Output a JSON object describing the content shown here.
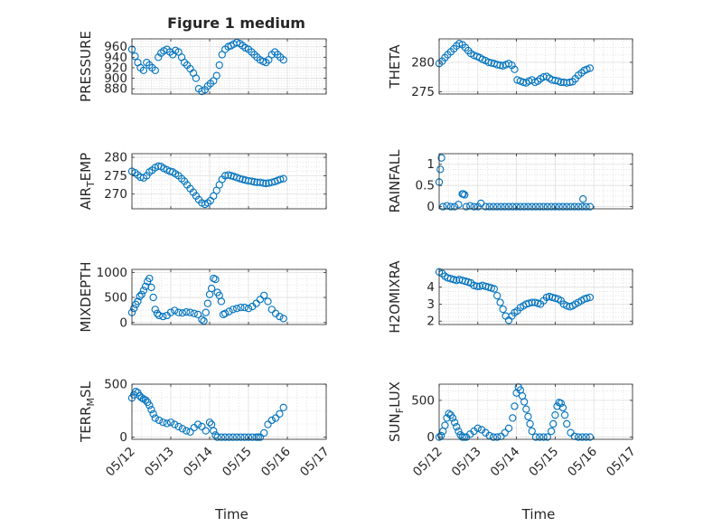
{
  "figure": {
    "title": "Figure 1 medium",
    "x_label": "Time",
    "marker_color": "#0072bd",
    "x_tick_labels": [
      "05/12",
      "05/13",
      "05/14",
      "05/15",
      "05/16",
      "05/17"
    ]
  },
  "chart_data": [
    {
      "type": "scatter",
      "id": "pressure",
      "title": "Figure 1 medium",
      "ylabel": "PRESSURE",
      "xlabel": "",
      "ylim": [
        870,
        975
      ],
      "yticks": [
        880,
        900,
        920,
        940,
        960
      ],
      "grid": true,
      "marker": "open-circle",
      "x": [
        0.0,
        0.08,
        0.15,
        0.22,
        0.3,
        0.38,
        0.45,
        0.52,
        0.6,
        0.68,
        0.75,
        0.82,
        0.9,
        0.98,
        1.05,
        1.12,
        1.2,
        1.28,
        1.35,
        1.42,
        1.5,
        1.58,
        1.65,
        1.72,
        1.8,
        1.88,
        1.95,
        2.02,
        2.1,
        2.18,
        2.25,
        2.32,
        2.4,
        2.48,
        2.55,
        2.62,
        2.7,
        2.78,
        2.85,
        2.92,
        3.0,
        3.08,
        3.15,
        3.22,
        3.3,
        3.38,
        3.45,
        3.52,
        3.6,
        3.68,
        3.75,
        3.82,
        3.9
      ],
      "y": [
        955,
        942,
        930,
        920,
        915,
        930,
        925,
        920,
        915,
        940,
        948,
        952,
        955,
        950,
        945,
        953,
        950,
        940,
        930,
        925,
        918,
        910,
        900,
        880,
        875,
        878,
        885,
        890,
        895,
        905,
        925,
        945,
        955,
        960,
        962,
        965,
        968,
        966,
        962,
        958,
        955,
        950,
        945,
        940,
        935,
        932,
        930,
        935,
        945,
        950,
        945,
        940,
        935
      ]
    },
    {
      "type": "scatter",
      "id": "theta",
      "ylabel": "THETA",
      "xlabel": "",
      "ylim": [
        274.6,
        284
      ],
      "yticks": [
        275,
        280
      ],
      "grid": true,
      "marker": "open-circle",
      "x": [
        0.0,
        0.08,
        0.15,
        0.22,
        0.3,
        0.38,
        0.45,
        0.52,
        0.6,
        0.68,
        0.75,
        0.82,
        0.9,
        0.98,
        1.05,
        1.12,
        1.2,
        1.28,
        1.35,
        1.42,
        1.5,
        1.58,
        1.65,
        1.72,
        1.8,
        1.88,
        1.95,
        2.02,
        2.1,
        2.18,
        2.25,
        2.32,
        2.4,
        2.48,
        2.55,
        2.62,
        2.7,
        2.78,
        2.85,
        2.92,
        3.0,
        3.08,
        3.15,
        3.22,
        3.3,
        3.38,
        3.45,
        3.52,
        3.6,
        3.68,
        3.75,
        3.82,
        3.9
      ],
      "y": [
        279.8,
        280.2,
        280.8,
        281.3,
        281.8,
        282.3,
        282.8,
        283.2,
        283.0,
        282.5,
        282.0,
        281.5,
        281.2,
        281.0,
        280.8,
        280.5,
        280.3,
        280.0,
        279.9,
        279.8,
        279.6,
        279.5,
        279.4,
        279.6,
        279.8,
        279.5,
        278.8,
        277.0,
        276.8,
        276.6,
        276.5,
        276.8,
        277.0,
        276.6,
        276.8,
        277.2,
        277.5,
        277.6,
        277.3,
        277.0,
        276.9,
        276.8,
        276.6,
        276.6,
        276.5,
        276.6,
        276.7,
        277.2,
        277.8,
        278.2,
        278.6,
        278.8,
        279.0
      ]
    },
    {
      "type": "scatter",
      "id": "air-temp",
      "ylabel_main": "AIR",
      "ylabel_sub": "T",
      "ylabel_rest": "EMP",
      "xlabel": "",
      "ylim": [
        266,
        281
      ],
      "yticks": [
        270,
        275,
        280
      ],
      "grid": true,
      "marker": "open-circle",
      "x": [
        0.0,
        0.08,
        0.15,
        0.22,
        0.3,
        0.38,
        0.45,
        0.52,
        0.6,
        0.68,
        0.75,
        0.82,
        0.9,
        0.98,
        1.05,
        1.12,
        1.2,
        1.28,
        1.35,
        1.42,
        1.5,
        1.58,
        1.65,
        1.72,
        1.8,
        1.88,
        1.95,
        2.02,
        2.1,
        2.18,
        2.25,
        2.32,
        2.4,
        2.48,
        2.55,
        2.62,
        2.7,
        2.78,
        2.85,
        2.92,
        3.0,
        3.08,
        3.15,
        3.22,
        3.3,
        3.38,
        3.45,
        3.52,
        3.6,
        3.68,
        3.75,
        3.82,
        3.9
      ],
      "y": [
        276.2,
        275.8,
        275.2,
        274.6,
        274.4,
        275.0,
        276.0,
        276.5,
        277.2,
        277.6,
        277.5,
        277.0,
        276.6,
        276.2,
        276.0,
        275.5,
        275.0,
        274.2,
        273.5,
        272.5,
        271.5,
        270.5,
        269.5,
        268.5,
        267.6,
        267.2,
        267.6,
        268.2,
        269.5,
        271.0,
        272.5,
        274.0,
        275.0,
        275.2,
        275.0,
        274.8,
        274.5,
        274.2,
        274.0,
        273.8,
        273.6,
        273.5,
        273.3,
        273.2,
        273.2,
        273.0,
        272.9,
        273.0,
        273.2,
        273.4,
        273.7,
        274.0,
        274.2
      ]
    },
    {
      "type": "scatter",
      "id": "rainfall",
      "ylabel": "RAINFALL",
      "xlabel": "",
      "ylim": [
        -0.05,
        1.25
      ],
      "yticks": [
        0,
        0.5,
        1
      ],
      "grid": true,
      "marker": "open-circle",
      "x": [
        0.0,
        0.03,
        0.06,
        0.1,
        0.2,
        0.3,
        0.4,
        0.5,
        0.6,
        0.62,
        0.66,
        0.7,
        0.8,
        0.9,
        1.0,
        1.08,
        1.2,
        1.3,
        1.4,
        1.5,
        1.6,
        1.7,
        1.8,
        1.9,
        2.0,
        2.1,
        2.2,
        2.3,
        2.4,
        2.5,
        2.6,
        2.7,
        2.8,
        2.9,
        3.0,
        3.1,
        3.2,
        3.3,
        3.4,
        3.5,
        3.6,
        3.7,
        3.72,
        3.8,
        3.9
      ],
      "y": [
        0.58,
        0.88,
        1.15,
        0.0,
        0.02,
        0.0,
        0.0,
        0.05,
        0.3,
        0.3,
        0.28,
        0.0,
        0.02,
        0.0,
        0.0,
        0.08,
        0.0,
        0.0,
        0.0,
        0.0,
        0.0,
        0.0,
        0.0,
        0.0,
        0.0,
        0.0,
        0.0,
        0.0,
        0.0,
        0.0,
        0.0,
        0.0,
        0.0,
        0.0,
        0.0,
        0.0,
        0.0,
        0.0,
        0.0,
        0.0,
        0.0,
        0.0,
        0.18,
        0.0,
        0.0
      ]
    },
    {
      "type": "scatter",
      "id": "mixdepth",
      "ylabel": "MIXDEPTH",
      "xlabel": "",
      "ylim": [
        -40,
        1060
      ],
      "yticks": [
        0,
        500,
        1000
      ],
      "grid": true,
      "marker": "open-circle",
      "x": [
        0.0,
        0.05,
        0.1,
        0.15,
        0.2,
        0.25,
        0.3,
        0.35,
        0.4,
        0.45,
        0.5,
        0.55,
        0.6,
        0.65,
        0.7,
        0.8,
        0.9,
        1.0,
        1.1,
        1.2,
        1.3,
        1.4,
        1.5,
        1.6,
        1.7,
        1.8,
        1.85,
        1.9,
        1.95,
        2.0,
        2.05,
        2.1,
        2.15,
        2.2,
        2.25,
        2.3,
        2.35,
        2.4,
        2.5,
        2.6,
        2.7,
        2.8,
        2.9,
        3.0,
        3.1,
        3.2,
        3.3,
        3.4,
        3.5,
        3.6,
        3.7,
        3.8,
        3.9
      ],
      "y": [
        200,
        280,
        360,
        420,
        520,
        560,
        640,
        720,
        820,
        880,
        700,
        500,
        260,
        180,
        140,
        120,
        140,
        200,
        240,
        200,
        190,
        210,
        200,
        180,
        160,
        60,
        30,
        200,
        380,
        560,
        680,
        880,
        860,
        600,
        540,
        420,
        160,
        180,
        220,
        260,
        280,
        300,
        300,
        280,
        320,
        380,
        460,
        540,
        420,
        260,
        180,
        120,
        80
      ]
    },
    {
      "type": "scatter",
      "id": "h2omixra",
      "ylabel": "H2OMIXRA",
      "xlabel": "",
      "ylim": [
        1.8,
        5.05
      ],
      "yticks": [
        2,
        3,
        4
      ],
      "grid": true,
      "marker": "open-circle",
      "x": [
        0.0,
        0.08,
        0.15,
        0.22,
        0.3,
        0.38,
        0.45,
        0.52,
        0.6,
        0.68,
        0.75,
        0.82,
        0.9,
        0.98,
        1.05,
        1.12,
        1.2,
        1.28,
        1.35,
        1.42,
        1.5,
        1.58,
        1.65,
        1.72,
        1.8,
        1.88,
        1.95,
        2.02,
        2.1,
        2.18,
        2.25,
        2.32,
        2.4,
        2.48,
        2.55,
        2.62,
        2.7,
        2.78,
        2.85,
        2.92,
        3.0,
        3.08,
        3.15,
        3.22,
        3.3,
        3.38,
        3.45,
        3.52,
        3.6,
        3.68,
        3.75,
        3.82,
        3.9
      ],
      "y": [
        4.9,
        4.8,
        4.65,
        4.55,
        4.5,
        4.45,
        4.4,
        4.45,
        4.4,
        4.35,
        4.3,
        4.25,
        4.1,
        4.05,
        4.05,
        4.1,
        4.05,
        4.0,
        3.95,
        3.9,
        3.5,
        3.1,
        2.7,
        2.3,
        2.05,
        2.3,
        2.5,
        2.6,
        2.8,
        2.9,
        3.0,
        3.05,
        3.1,
        3.1,
        3.05,
        3.0,
        3.2,
        3.4,
        3.45,
        3.4,
        3.35,
        3.3,
        3.2,
        3.0,
        2.9,
        2.85,
        2.9,
        3.0,
        3.1,
        3.2,
        3.3,
        3.35,
        3.4
      ]
    },
    {
      "type": "scatter",
      "id": "terr-msl",
      "ylabel_main": "TERR",
      "ylabel_sub": "M",
      "ylabel_rest": "SL",
      "xlabel": "Time",
      "ylim": [
        -20,
        500
      ],
      "yticks": [
        0,
        500
      ],
      "grid": true,
      "marker": "open-circle",
      "x": [
        0.0,
        0.05,
        0.1,
        0.15,
        0.2,
        0.25,
        0.3,
        0.35,
        0.4,
        0.45,
        0.5,
        0.55,
        0.6,
        0.7,
        0.8,
        0.9,
        1.0,
        1.1,
        1.2,
        1.3,
        1.4,
        1.5,
        1.6,
        1.7,
        1.8,
        1.9,
        2.0,
        2.05,
        2.1,
        2.15,
        2.2,
        2.3,
        2.4,
        2.5,
        2.6,
        2.7,
        2.8,
        2.9,
        3.0,
        3.1,
        3.2,
        3.25,
        3.3,
        3.4,
        3.5,
        3.6,
        3.7,
        3.8,
        3.9
      ],
      "y": [
        370,
        400,
        430,
        420,
        390,
        370,
        360,
        350,
        330,
        300,
        260,
        220,
        180,
        160,
        140,
        130,
        140,
        120,
        100,
        80,
        60,
        50,
        90,
        120,
        100,
        60,
        140,
        120,
        60,
        20,
        0,
        0,
        0,
        0,
        0,
        0,
        0,
        0,
        0,
        0,
        0,
        0,
        0,
        40,
        120,
        160,
        180,
        220,
        280
      ]
    },
    {
      "type": "scatter",
      "id": "sun-flux",
      "ylabel_main": "SUN",
      "ylabel_sub": "F",
      "ylabel_rest": "LUX",
      "xlabel": "Time",
      "ylim": [
        -30,
        720
      ],
      "yticks": [
        0,
        500
      ],
      "grid": true,
      "marker": "open-circle",
      "x": [
        0.0,
        0.05,
        0.1,
        0.15,
        0.2,
        0.25,
        0.3,
        0.35,
        0.4,
        0.45,
        0.5,
        0.55,
        0.6,
        0.65,
        0.7,
        0.8,
        0.9,
        1.0,
        1.1,
        1.2,
        1.3,
        1.4,
        1.5,
        1.6,
        1.7,
        1.8,
        1.9,
        1.95,
        2.0,
        2.05,
        2.1,
        2.15,
        2.2,
        2.25,
        2.3,
        2.35,
        2.4,
        2.5,
        2.6,
        2.7,
        2.8,
        2.9,
        2.95,
        3.0,
        3.05,
        3.1,
        3.15,
        3.2,
        3.25,
        3.3,
        3.4,
        3.5,
        3.6,
        3.7,
        3.8,
        3.9
      ],
      "y": [
        0,
        20,
        80,
        160,
        260,
        320,
        300,
        260,
        200,
        140,
        80,
        30,
        0,
        0,
        0,
        40,
        80,
        120,
        100,
        60,
        20,
        0,
        0,
        10,
        60,
        120,
        260,
        420,
        600,
        680,
        640,
        560,
        480,
        380,
        280,
        180,
        80,
        0,
        0,
        0,
        0,
        80,
        180,
        300,
        420,
        470,
        460,
        400,
        300,
        180,
        60,
        10,
        0,
        0,
        0,
        0
      ]
    }
  ]
}
